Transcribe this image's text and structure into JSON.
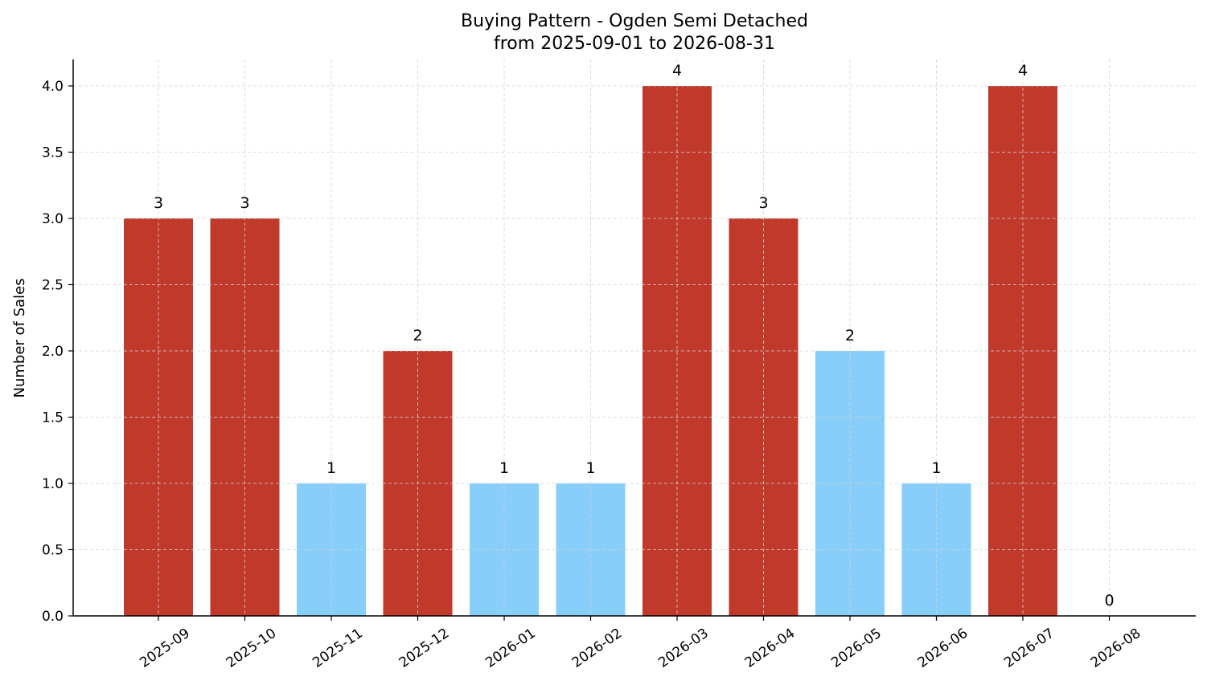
{
  "chart_data": {
    "type": "bar",
    "title": "Buying Pattern - Ogden Semi Detached",
    "subtitle": "from 2025-09-01 to 2026-08-31",
    "xlabel": "",
    "ylabel": "Number of Sales",
    "ylim": [
      0,
      4.2
    ],
    "yticks": [
      "0.0",
      "0.5",
      "1.0",
      "1.5",
      "2.0",
      "2.5",
      "3.0",
      "3.5",
      "4.0"
    ],
    "grid": true,
    "categories": [
      "2025-09",
      "2025-10",
      "2025-11",
      "2025-12",
      "2026-01",
      "2026-02",
      "2026-03",
      "2026-04",
      "2026-05",
      "2026-06",
      "2026-07",
      "2026-08"
    ],
    "values": [
      3,
      3,
      1,
      2,
      1,
      1,
      4,
      3,
      2,
      1,
      4,
      0
    ],
    "data_labels": [
      "3",
      "3",
      "1",
      "2",
      "1",
      "1",
      "4",
      "3",
      "2",
      "1",
      "4",
      "0"
    ],
    "bar_colors": [
      "#c0392b",
      "#c0392b",
      "#87cefa",
      "#c0392b",
      "#87cefa",
      "#87cefa",
      "#c0392b",
      "#c0392b",
      "#87cefa",
      "#87cefa",
      "#c0392b",
      "#87cefa"
    ],
    "grid_color": "#d3d3d3",
    "axis_color": "#000000"
  }
}
